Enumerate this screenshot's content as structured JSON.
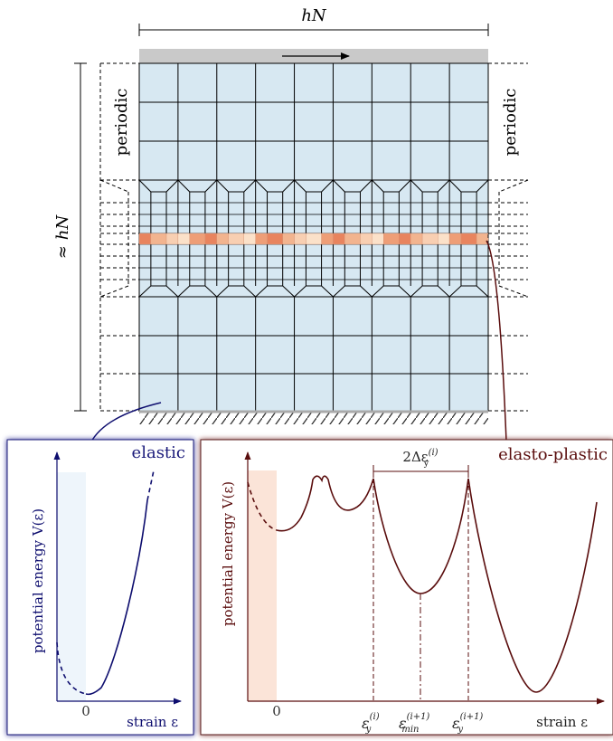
{
  "top": {
    "width_label": "hN",
    "height_label": "≈ hN",
    "left_periodic_label": "periodic",
    "right_periodic_label": "periodic"
  },
  "elastic_panel": {
    "title": "elastic",
    "ylabel": "potential energy V(ε)",
    "zero_tick": "0",
    "xlabel": "strain ε"
  },
  "plastic_panel": {
    "title": "elasto-plastic",
    "ylabel": "potential energy V(ε)",
    "zero_tick": "0",
    "xlabel": "strain ε",
    "interval_label": {
      "base": "2Δε",
      "sub": "y",
      "sup": "(i)"
    },
    "tick_labels": [
      {
        "base": "ε",
        "sub": "y",
        "sup": "(i)"
      },
      {
        "base": "ε",
        "sub": "min",
        "sup": "(i+1)"
      },
      {
        "base": "ε",
        "sub": "y",
        "sup": "(i+1)"
      }
    ]
  },
  "colors": {
    "cell_fill": "#d7e8f2",
    "shear_bar": "#c9c9c9",
    "elastic_blue": "#0d0d6e",
    "plastic_brown": "#5a0d0d",
    "plastic_cells": [
      "#f2b48f",
      "#ee9e77",
      "#f8cfb2",
      "#e8845e",
      "#fbe1c9"
    ]
  }
}
